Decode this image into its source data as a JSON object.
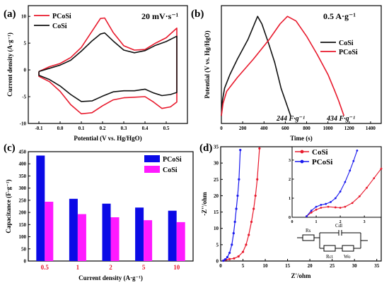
{
  "chart_data": [
    {
      "panel": "(a)",
      "type": "line",
      "note": "20 mV·s⁻¹",
      "xlabel": "Potential (V vs. Hg/HgO)",
      "ylabel": "Current density (A·g⁻¹)",
      "xlim": [
        -0.15,
        0.6
      ],
      "ylim": [
        -10,
        12
      ],
      "xticks": [
        "-0.1",
        "0.0",
        "0.1",
        "0.2",
        "0.3",
        "0.4",
        "0.5"
      ],
      "yticks": [
        "-10",
        "-5",
        "0",
        "5",
        "10"
      ],
      "legend_position": "top-left",
      "series": [
        {
          "name": "PCoSi",
          "color": "#e8192c",
          "x": [
            -0.1,
            -0.05,
            0.0,
            0.05,
            0.1,
            0.15,
            0.19,
            0.21,
            0.25,
            0.3,
            0.35,
            0.4,
            0.45,
            0.5,
            0.55,
            0.55,
            0.52,
            0.48,
            0.44,
            0.4,
            0.35,
            0.3,
            0.25,
            0.2,
            0.15,
            0.1,
            0.05,
            0.0,
            -0.05,
            -0.1
          ],
          "y": [
            -0.3,
            0.6,
            1.2,
            2.3,
            4.2,
            7.2,
            9.6,
            9.7,
            7.0,
            4.5,
            3.7,
            3.8,
            5.0,
            6.0,
            7.8,
            -6.0,
            -6.9,
            -7.2,
            -6.0,
            -5.0,
            -5.1,
            -5.2,
            -5.6,
            -6.7,
            -8.0,
            -8.2,
            -6.5,
            -4.0,
            -2.2,
            -1.2
          ]
        },
        {
          "name": "CoSi",
          "color": "#111111",
          "x": [
            -0.1,
            -0.05,
            0.0,
            0.05,
            0.1,
            0.15,
            0.19,
            0.21,
            0.25,
            0.3,
            0.35,
            0.4,
            0.45,
            0.5,
            0.55,
            0.55,
            0.52,
            0.48,
            0.44,
            0.4,
            0.35,
            0.3,
            0.25,
            0.2,
            0.15,
            0.1,
            0.05,
            0.0,
            -0.05,
            -0.1
          ],
          "y": [
            -0.3,
            0.3,
            0.9,
            1.8,
            3.5,
            5.4,
            6.7,
            6.9,
            5.4,
            3.7,
            3.2,
            3.6,
            4.6,
            5.3,
            6.3,
            -4.2,
            -4.6,
            -4.8,
            -4.3,
            -3.6,
            -3.9,
            -3.9,
            -4.1,
            -4.9,
            -5.8,
            -5.9,
            -4.6,
            -3.0,
            -1.8,
            -1.0
          ]
        }
      ]
    },
    {
      "panel": "(b)",
      "type": "line",
      "note": "0.5 A·g⁻¹",
      "xlabel": "Time (s)",
      "ylabel": "Potential (V vs. Hg/HgO)",
      "xlim": [
        0,
        1500
      ],
      "ylim": [
        -0.15,
        0.62
      ],
      "xticks": [
        "0",
        "200",
        "400",
        "600",
        "800",
        "1000",
        "1200",
        "1400"
      ],
      "legend_position": "right",
      "annotations": [
        "244 F·g⁻¹",
        "434 F·g⁻¹"
      ],
      "series": [
        {
          "name": "CoSi",
          "color": "#111111",
          "x": [
            0,
            10,
            30,
            80,
            150,
            250,
            340,
            380,
            440,
            500,
            560,
            610,
            650
          ],
          "y": [
            -0.1,
            0.0,
            0.08,
            0.17,
            0.27,
            0.4,
            0.55,
            0.5,
            0.38,
            0.25,
            0.08,
            -0.02,
            -0.1
          ]
        },
        {
          "name": "PCoSi",
          "color": "#e8192c",
          "x": [
            0,
            15,
            50,
            150,
            300,
            450,
            550,
            620,
            700,
            800,
            900,
            1000,
            1060,
            1100,
            1150
          ],
          "y": [
            -0.1,
            -0.02,
            0.06,
            0.15,
            0.27,
            0.4,
            0.5,
            0.55,
            0.52,
            0.42,
            0.3,
            0.17,
            0.07,
            0.0,
            -0.1
          ]
        }
      ]
    },
    {
      "panel": "(c)",
      "type": "bar",
      "xlabel": "Current density (A·g⁻¹)",
      "ylabel": "Capacitance (F·g⁻¹)",
      "ylim": [
        0,
        450
      ],
      "yticks": [
        "0",
        "50",
        "100",
        "150",
        "200",
        "250",
        "300",
        "350",
        "400",
        "450"
      ],
      "categories": [
        "0.5",
        "1",
        "2",
        "5",
        "10"
      ],
      "legend_position": "top-right",
      "series": [
        {
          "name": "PCoSi",
          "color": "#0a0ae6",
          "values": [
            434,
            256,
            236,
            220,
            207
          ]
        },
        {
          "name": "CoSi",
          "color": "#ff1aff",
          "values": [
            244,
            193,
            180,
            168,
            160
          ]
        }
      ]
    },
    {
      "panel": "(d)",
      "type": "scatter",
      "xlabel": "Z'/ohm",
      "ylabel": "-Z''/ohm",
      "xlim": [
        0,
        36
      ],
      "ylim": [
        0,
        35
      ],
      "xticks": [
        "0",
        "5",
        "10",
        "15",
        "20",
        "25",
        "30",
        "35"
      ],
      "yticks": [
        "0",
        "5",
        "10",
        "15",
        "20",
        "25",
        "30",
        "35"
      ],
      "legend_position": "inset",
      "series": [
        {
          "name": "CoSi",
          "color": "#e8192c",
          "x": [
            0.6,
            1.2,
            2.0,
            3.0,
            4.0,
            5.0,
            5.7,
            6.3,
            6.9,
            7.4,
            7.8,
            8.2,
            8.7
          ],
          "y": [
            0.1,
            0.4,
            0.6,
            0.8,
            1.4,
            2.8,
            5.0,
            8.0,
            12.0,
            16.0,
            20.0,
            25.0,
            34.5
          ]
        },
        {
          "name": "PCoSi",
          "color": "#1a1aee",
          "x": [
            0.6,
            1.0,
            1.5,
            2.0,
            2.5,
            2.9,
            3.2,
            3.5,
            3.8,
            4.1,
            4.4
          ],
          "y": [
            0.1,
            0.5,
            1.2,
            2.5,
            5.0,
            8.5,
            12.0,
            16.0,
            20.0,
            25.0,
            34.0
          ]
        }
      ],
      "inset": {
        "xlim": [
          0,
          3.7
        ],
        "ylim": [
          0,
          3.7
        ],
        "xticks": [
          "0",
          "1",
          "2",
          "3"
        ],
        "yticks": [
          "0",
          "1",
          "2",
          "3"
        ],
        "series": [
          {
            "name": "CoSi",
            "color": "#e8192c",
            "x": [
              0.6,
              0.8,
              1.0,
              1.2,
              1.5,
              1.8,
              2.0,
              2.2,
              2.5,
              2.8,
              3.1,
              3.4,
              3.7
            ],
            "y": [
              0.05,
              0.25,
              0.4,
              0.5,
              0.55,
              0.52,
              0.5,
              0.55,
              0.75,
              1.1,
              1.55,
              2.05,
              2.55
            ]
          },
          {
            "name": "PCoSi",
            "color": "#1a1aee",
            "x": [
              0.6,
              0.8,
              1.0,
              1.2,
              1.4,
              1.6,
              1.8,
              2.0,
              2.2,
              2.4,
              2.55,
              2.7
            ],
            "y": [
              0.05,
              0.35,
              0.55,
              0.65,
              0.7,
              0.8,
              1.0,
              1.35,
              1.85,
              2.45,
              2.95,
              3.5
            ]
          }
        ]
      },
      "circuit_labels": [
        "Rs",
        "Cdl",
        "Rct",
        "Wo"
      ]
    }
  ]
}
